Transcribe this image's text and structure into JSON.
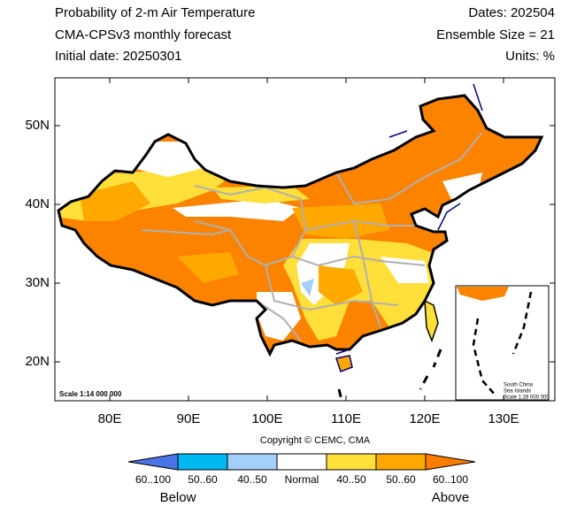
{
  "header": {
    "title": "Probability of 2-m Air Temperature",
    "subtitle": "CMA-CPSv3 monthly forecast",
    "initial_date": "Initial date: 20250301",
    "dates": "Dates: 202504",
    "ensemble": "Ensemble Size = 21",
    "units": "Units: %"
  },
  "map": {
    "xticks": [
      {
        "value": 80,
        "label": "80E"
      },
      {
        "value": 90,
        "label": "90E"
      },
      {
        "value": 100,
        "label": "100E"
      },
      {
        "value": 110,
        "label": "110E"
      },
      {
        "value": 120,
        "label": "120E"
      },
      {
        "value": 130,
        "label": "130E"
      }
    ],
    "yticks": [
      {
        "value": 50,
        "label": "50N"
      },
      {
        "value": 40,
        "label": "40N"
      },
      {
        "value": 30,
        "label": "30N"
      },
      {
        "value": 20,
        "label": "20N"
      }
    ],
    "scale": "Scale 1:14 000 000",
    "inset": {
      "lines": [
        "South China",
        "Sea Islands",
        "Scale 1:28 000 000"
      ]
    }
  },
  "copyright": "Copyright © CEMC, CMA",
  "legend": {
    "items": [
      {
        "label": "60..100",
        "color": "#4a74e6"
      },
      {
        "label": "50..60",
        "color": "#00b8f0"
      },
      {
        "label": "40..50",
        "color": "#a3d0fb"
      },
      {
        "label": "Normal",
        "color": "#ffffff"
      },
      {
        "label": "40..50",
        "color": "#ffdf3a"
      },
      {
        "label": "50..60",
        "color": "#ffa800"
      },
      {
        "label": "60..100",
        "color": "#fb7d00"
      }
    ],
    "below": "Below",
    "above": "Above"
  }
}
